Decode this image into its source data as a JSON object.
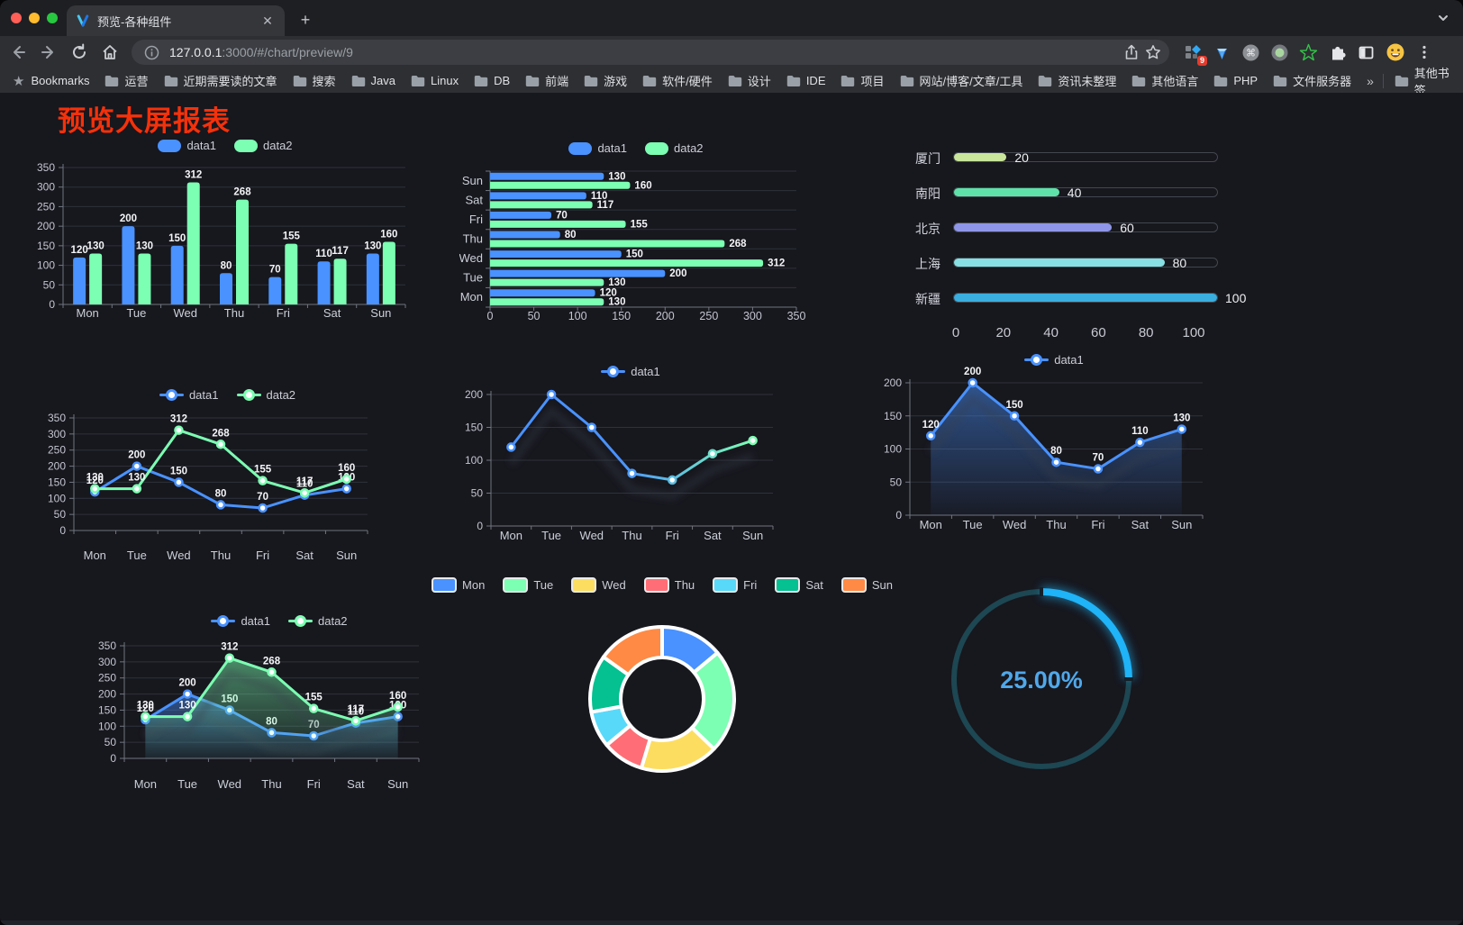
{
  "browser": {
    "tab": {
      "title": "预览-各种组件"
    },
    "url": {
      "host": "127.0.0.1",
      "rest": ":3000/#/chart/preview/9"
    },
    "extensions_badge": "9",
    "bookmarks_bar": {
      "bookmarks_label": "Bookmarks",
      "folders": [
        "运营",
        "近期需要读的文章",
        "搜索",
        "Java",
        "Linux",
        "DB",
        "前端",
        "游戏",
        "软件/硬件",
        "设计",
        "IDE",
        "项目",
        "网站/博客/文章/工具",
        "资讯未整理",
        "其他语言",
        "PHP",
        "文件服务器"
      ],
      "overflow": "»",
      "other_bookmarks": "其他书签"
    }
  },
  "page": {
    "title": "预览大屏报表"
  },
  "chart_data": [
    {
      "id": "bar-grouped",
      "type": "bar",
      "categories": [
        "Mon",
        "Tue",
        "Wed",
        "Thu",
        "Fri",
        "Sat",
        "Sun"
      ],
      "series": [
        {
          "name": "data1",
          "color": "#4992ff",
          "values": [
            120,
            200,
            150,
            80,
            70,
            110,
            130
          ]
        },
        {
          "name": "data2",
          "color": "#7cffb2",
          "values": [
            130,
            130,
            312,
            268,
            155,
            117,
            160
          ]
        }
      ],
      "ylim": [
        0,
        350
      ],
      "ystep": 50,
      "legend_position": "top",
      "grid": true
    },
    {
      "id": "bar-horizontal",
      "type": "bar-h",
      "categories": [
        "Mon",
        "Tue",
        "Wed",
        "Thu",
        "Fri",
        "Sat",
        "Sun"
      ],
      "series": [
        {
          "name": "data1",
          "color": "#4992ff",
          "values": [
            120,
            200,
            150,
            80,
            70,
            110,
            130
          ]
        },
        {
          "name": "data2",
          "color": "#7cffb2",
          "values": [
            130,
            130,
            312,
            268,
            155,
            117,
            160
          ]
        }
      ],
      "xlim": [
        0,
        350
      ],
      "xstep": 50,
      "legend_position": "top"
    },
    {
      "id": "progress-list",
      "type": "bar",
      "note": "horizontal progress bars",
      "xlim": [
        0,
        100
      ],
      "xticks": [
        0,
        20,
        40,
        60,
        80,
        100
      ],
      "rows": [
        {
          "label": "厦门",
          "value": 20,
          "color": "#c8e59b"
        },
        {
          "label": "南阳",
          "value": 40,
          "color": "#5fe2aa"
        },
        {
          "label": "北京",
          "value": 60,
          "color": "#8f96e8"
        },
        {
          "label": "上海",
          "value": 80,
          "color": "#87e0e3"
        },
        {
          "label": "新疆",
          "value": 100,
          "color": "#3aaede"
        }
      ]
    },
    {
      "id": "line-two",
      "type": "line",
      "categories": [
        "Mon",
        "Tue",
        "Wed",
        "Thu",
        "Fri",
        "Sat",
        "Sun"
      ],
      "series": [
        {
          "name": "data1",
          "color": "#4992ff",
          "values": [
            120,
            200,
            150,
            80,
            70,
            110,
            130
          ]
        },
        {
          "name": "data2",
          "color": "#7cffb2",
          "values": [
            130,
            130,
            312,
            268,
            155,
            117,
            160
          ]
        }
      ],
      "ylim": [
        0,
        350
      ],
      "ystep": 50,
      "labels": true
    },
    {
      "id": "line-gradient",
      "type": "line",
      "categories": [
        "Mon",
        "Tue",
        "Wed",
        "Thu",
        "Fri",
        "Sat",
        "Sun"
      ],
      "series": [
        {
          "name": "data1",
          "color": "#4992ff",
          "gradient": [
            "#4992ff",
            "#7cffb2"
          ],
          "values": [
            120,
            200,
            150,
            80,
            70,
            110,
            130
          ]
        }
      ],
      "ylim": [
        0,
        200
      ],
      "ystep": 50,
      "labels": false
    },
    {
      "id": "line-area",
      "type": "area",
      "categories": [
        "Mon",
        "Tue",
        "Wed",
        "Thu",
        "Fri",
        "Sat",
        "Sun"
      ],
      "series": [
        {
          "name": "data1",
          "color": "#4992ff",
          "area": true,
          "values": [
            120,
            200,
            150,
            80,
            70,
            110,
            130
          ]
        }
      ],
      "ylim": [
        0,
        200
      ],
      "ystep": 50,
      "labels": true
    },
    {
      "id": "line-area-two",
      "type": "area",
      "categories": [
        "Mon",
        "Tue",
        "Wed",
        "Thu",
        "Fri",
        "Sat",
        "Sun"
      ],
      "series": [
        {
          "name": "data1",
          "color": "#4992ff",
          "area": true,
          "values": [
            120,
            200,
            150,
            80,
            70,
            110,
            130
          ]
        },
        {
          "name": "data2",
          "color": "#7cffb2",
          "area": true,
          "values": [
            130,
            130,
            312,
            268,
            155,
            117,
            160
          ]
        }
      ],
      "ylim": [
        0,
        350
      ],
      "ystep": 50,
      "labels": true
    },
    {
      "id": "donut",
      "type": "pie",
      "items": [
        {
          "name": "Mon",
          "value": 120,
          "color": "#4992ff"
        },
        {
          "name": "Tue",
          "value": 200,
          "color": "#7cffb2"
        },
        {
          "name": "Wed",
          "value": 150,
          "color": "#fddd60"
        },
        {
          "name": "Thu",
          "value": 80,
          "color": "#ff6e76"
        },
        {
          "name": "Fri",
          "value": 70,
          "color": "#58d9f9"
        },
        {
          "name": "Sat",
          "value": 110,
          "color": "#05c091"
        },
        {
          "name": "Sun",
          "value": 130,
          "color": "#ff8a45"
        }
      ]
    },
    {
      "id": "gauge",
      "type": "gauge",
      "value": 25,
      "max": 100,
      "label": "25.00%",
      "color": "#1fb3f7",
      "track_color": "#1d4752",
      "text_color": "#4fa8ea"
    }
  ]
}
